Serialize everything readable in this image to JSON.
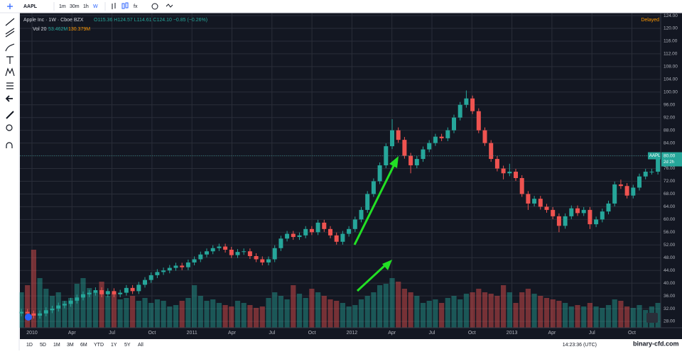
{
  "toolbar": {
    "symbol": "AAPL",
    "intervals": [
      "1m",
      "30m",
      "1h",
      "W"
    ]
  },
  "legend": {
    "name": "Apple Inc",
    "interval": "1W",
    "exchange": "Cboe BZX",
    "ohlc": "O115.36 H124.57 L114.61 C124.10 −0.85 (−0.26%)",
    "volume_label": "Vol 20",
    "volume_values": [
      "53.462M",
      "130.379M"
    ]
  },
  "status": "Delayed",
  "price_tag": {
    "symbol": "AAPL",
    "price": "80.00",
    "countdown": "2d 2h"
  },
  "bottom_bar": {
    "ranges": [
      "1D",
      "5D",
      "1M",
      "3M",
      "6M",
      "YTD",
      "1Y",
      "5Y",
      "All"
    ],
    "clock": "14:23:36 (UTC)"
  },
  "watermark": "binary-cfd.com",
  "chart_data": {
    "type": "candlestick",
    "up_color": "#26a69a",
    "down_color": "#ef5350",
    "grid": true,
    "time_labels": [
      "2010",
      "Apr",
      "Jul",
      "Oct",
      "2011",
      "Apr",
      "Jul",
      "Oct",
      "2012",
      "Apr",
      "Jul",
      "Oct",
      "2013",
      "Apr",
      "Jul",
      "Oct"
    ],
    "ylim": [
      26,
      124.9
    ],
    "yticks": [
      {
        "value": 28,
        "label": "28.00"
      },
      {
        "value": 32,
        "label": "32.00"
      },
      {
        "value": 36,
        "label": "36.00"
      },
      {
        "value": 40,
        "label": "40.00"
      },
      {
        "value": 44,
        "label": "44.00"
      },
      {
        "value": 48,
        "label": "48.00"
      },
      {
        "value": 52,
        "label": "52.00"
      },
      {
        "value": 56,
        "label": "56.00"
      },
      {
        "value": 60,
        "label": "60.00"
      },
      {
        "value": 64,
        "label": "64.00"
      },
      {
        "value": 68,
        "label": "68.00"
      },
      {
        "value": 72,
        "label": "72.00"
      },
      {
        "value": 76,
        "label": "76.00"
      },
      {
        "value": 80,
        "label": "80.00"
      },
      {
        "value": 84,
        "label": "84.00"
      },
      {
        "value": 88,
        "label": "88.00"
      },
      {
        "value": 92,
        "label": "92.00"
      },
      {
        "value": 96,
        "label": "96.00"
      },
      {
        "value": 100,
        "label": "100.00"
      },
      {
        "value": 104,
        "label": "104.00"
      },
      {
        "value": 108,
        "label": "108.00"
      },
      {
        "value": 112,
        "label": "112.00"
      },
      {
        "value": 116,
        "label": "116.00"
      },
      {
        "value": 120,
        "label": "120.00"
      },
      {
        "value": 124,
        "label": "124.00"
      }
    ],
    "candles": {
      "open": [
        30.5,
        31,
        30.5,
        29.8,
        30.5,
        31.5,
        32,
        33,
        33.5,
        34.5,
        35.5,
        36.5,
        37,
        37.8,
        36.5,
        37.5,
        36.5,
        37,
        38.5,
        37.5,
        39.5,
        41,
        42.5,
        43.5,
        44,
        44.8,
        45.5,
        45,
        46.5,
        47.5,
        49,
        50,
        51,
        51.5,
        50.5,
        48.8,
        49.8,
        50,
        48.5,
        47.5,
        46.5,
        47.5,
        51,
        54,
        55.5,
        54.5,
        55,
        57,
        56,
        59,
        57,
        55,
        53,
        55.5,
        57,
        60,
        63,
        68,
        72,
        77,
        83,
        88,
        85,
        80,
        77,
        79,
        82,
        84,
        86,
        85.5,
        88,
        92,
        96,
        98,
        94,
        88,
        84,
        79,
        76,
        74.5,
        75,
        73,
        68,
        65,
        66.5,
        64,
        63,
        61,
        58,
        61,
        63.5,
        62,
        63,
        58.5,
        60,
        62.5,
        65,
        71,
        70.5,
        67.5,
        70,
        73.5,
        75,
        75
      ],
      "high": [
        31.9,
        31.9,
        31.4,
        31.4,
        32.4,
        32.9,
        33.9,
        34.4,
        35.4,
        36.4,
        37.4,
        37.9,
        38.7,
        38.7,
        38.4,
        38.4,
        37.9,
        39.4,
        39.4,
        40.4,
        41.9,
        43.4,
        44.4,
        44.9,
        45.7,
        46.4,
        46.4,
        47.4,
        48.4,
        49.9,
        50.9,
        51.9,
        52.4,
        52.4,
        51.4,
        50.7,
        50.9,
        50.9,
        49.4,
        48.4,
        48.4,
        51.9,
        54.9,
        56.4,
        56.4,
        55.9,
        57.9,
        57.9,
        59.9,
        59.9,
        57.9,
        55.9,
        56.4,
        57.9,
        60.9,
        63.9,
        68.9,
        72.9,
        77.9,
        83.9,
        91.5,
        88.9,
        85.9,
        80.9,
        79.9,
        82.9,
        84.9,
        86.9,
        86.9,
        88.9,
        92.9,
        96.9,
        100.5,
        98.9,
        94.9,
        88.9,
        84.9,
        79.9,
        76.9,
        77.5,
        75.9,
        73.9,
        68.9,
        67.4,
        67.4,
        64.9,
        63.9,
        61.9,
        61.9,
        64.4,
        64.4,
        63.9,
        63.9,
        60.9,
        63.4,
        65.9,
        71.9,
        72.5,
        71.4,
        70.9,
        74.4,
        75.9,
        75.9,
        80.9
      ],
      "low": [
        29.6,
        29.6,
        28.9,
        28.9,
        29.6,
        30.6,
        31.1,
        32.1,
        32.6,
        33.6,
        34.6,
        35.6,
        36.1,
        35.6,
        35.6,
        35.6,
        35.6,
        36.1,
        36.6,
        36.6,
        38.6,
        40.1,
        41.6,
        42.6,
        43.1,
        43.9,
        44.1,
        44.1,
        45.6,
        46.6,
        48.1,
        49.1,
        50.1,
        49.6,
        47.9,
        47.9,
        48.9,
        47.6,
        46.6,
        45.6,
        45.6,
        46.6,
        50.1,
        53.1,
        53.6,
        53.6,
        54.1,
        55.1,
        55.1,
        56.1,
        54.1,
        52.1,
        52.1,
        54.6,
        56.1,
        59.1,
        62.1,
        67.1,
        71.1,
        76.1,
        82.1,
        84.1,
        79.1,
        74.5,
        76.1,
        78.1,
        81.1,
        83.1,
        84.6,
        84.6,
        87.1,
        91.1,
        95.1,
        93.1,
        87.1,
        83.1,
        78.1,
        75.1,
        72.6,
        73.6,
        72.1,
        67.1,
        63,
        64.1,
        63.1,
        62.1,
        60.1,
        56,
        57.1,
        60.1,
        61.1,
        61.1,
        57,
        57.6,
        59.1,
        61.6,
        64.1,
        69.6,
        66.6,
        66.6,
        69.1,
        72.6,
        74.1,
        74.1
      ],
      "close": [
        31,
        30.5,
        29.8,
        30.5,
        31.5,
        32,
        33,
        33.5,
        34.5,
        35.5,
        36.5,
        37,
        37.8,
        36.5,
        37.5,
        36.5,
        37,
        38.5,
        37.5,
        39.5,
        41,
        42.5,
        43.5,
        44,
        44.8,
        45.5,
        45,
        46.5,
        47.5,
        49,
        50,
        51,
        51.5,
        50.5,
        48.8,
        49.8,
        50,
        48.5,
        47.5,
        46.5,
        47.5,
        51,
        54,
        55.5,
        54.5,
        55,
        57,
        56,
        59,
        57,
        55,
        53,
        55.5,
        57,
        60,
        63,
        68,
        72,
        77,
        83,
        88,
        85,
        80,
        77,
        79,
        82,
        84,
        86,
        85.5,
        88,
        92,
        96,
        98,
        94,
        88,
        84,
        79,
        76,
        74.5,
        75,
        73,
        68,
        65,
        66.5,
        64,
        63,
        61,
        58,
        61,
        63.5,
        62,
        63,
        58.5,
        60,
        62.5,
        65,
        71,
        70.5,
        67.5,
        70,
        73.5,
        75,
        75,
        80
      ],
      "volume": [
        500,
        600,
        1100,
        700,
        550,
        450,
        500,
        380,
        420,
        620,
        700,
        560,
        500,
        650,
        450,
        480,
        400,
        420,
        450,
        380,
        420,
        350,
        400,
        380,
        300,
        320,
        380,
        420,
        600,
        450,
        380,
        400,
        350,
        320,
        300,
        380,
        350,
        320,
        280,
        300,
        420,
        500,
        450,
        400,
        600,
        480,
        420,
        550,
        500,
        450,
        400,
        380,
        350,
        300,
        320,
        400,
        450,
        500,
        600,
        620,
        700,
        650,
        550,
        500,
        450,
        350,
        380,
        400,
        350,
        420,
        450,
        400,
        480,
        500,
        550,
        500,
        480,
        450,
        600,
        500,
        350,
        500,
        550,
        480,
        450,
        420,
        400,
        380,
        350,
        300,
        320,
        300,
        350,
        300,
        280,
        320,
        400,
        380,
        300,
        280,
        320,
        250,
        300,
        350
      ]
    }
  }
}
